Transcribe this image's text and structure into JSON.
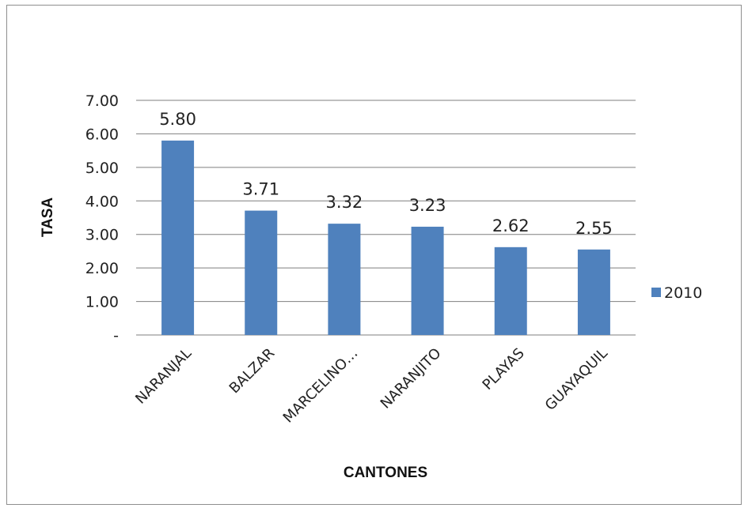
{
  "chart_data": {
    "type": "bar",
    "categories": [
      "NARANJAL",
      "BALZAR",
      "MARCELINO…",
      "NARANJITO",
      "PLAYAS",
      "GUAYAQUIL"
    ],
    "series": [
      {
        "name": "2010",
        "values": [
          5.8,
          3.71,
          3.32,
          3.23,
          2.62,
          2.55
        ],
        "color": "#4f81bd"
      }
    ],
    "data_labels": [
      "5.80",
      "3.71",
      "3.32",
      "3.23",
      "2.62",
      "2.55"
    ],
    "ytick_labels": [
      "-",
      "1.00",
      "2.00",
      "3.00",
      "4.00",
      "5.00",
      "6.00",
      "7.00"
    ],
    "xlabel": "CANTONES",
    "ylabel": "TASA",
    "ylim": [
      0,
      7
    ],
    "grid": true,
    "legend_position": "right",
    "gridline_color": "#7f7f7f"
  }
}
